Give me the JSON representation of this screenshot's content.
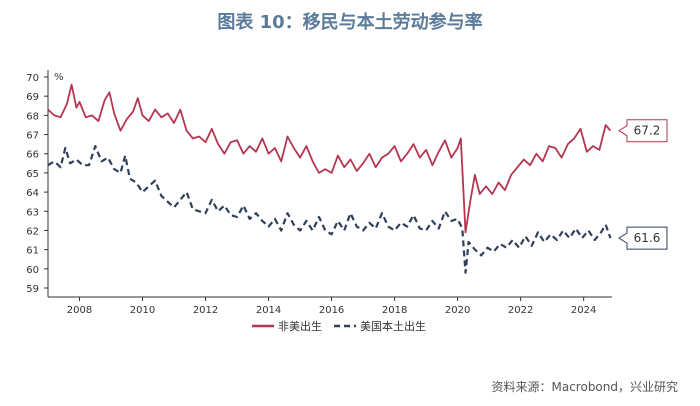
{
  "chart_data": {
    "type": "line",
    "title": "图表 10：移民与本土劳动参与率",
    "unit_label": "%",
    "xlim": [
      2007.0,
      2024.9
    ],
    "ylim": [
      59,
      70
    ],
    "yticks": [
      59,
      60,
      61,
      62,
      63,
      64,
      65,
      66,
      67,
      68,
      69,
      70
    ],
    "xticks": [
      2008,
      2010,
      2012,
      2014,
      2016,
      2018,
      2020,
      2022,
      2024
    ],
    "grid": false,
    "legend_position": "bottom-center",
    "series": [
      {
        "name": "非美出生",
        "color": "#b5364f",
        "style": "solid",
        "end_label": "67.2",
        "points": [
          [
            2007.0,
            68.3
          ],
          [
            2007.2,
            68.0
          ],
          [
            2007.4,
            67.9
          ],
          [
            2007.6,
            68.6
          ],
          [
            2007.75,
            69.6
          ],
          [
            2007.9,
            68.4
          ],
          [
            2008.0,
            68.7
          ],
          [
            2008.2,
            67.9
          ],
          [
            2008.4,
            68.0
          ],
          [
            2008.6,
            67.7
          ],
          [
            2008.8,
            68.8
          ],
          [
            2008.95,
            69.2
          ],
          [
            2009.1,
            68.1
          ],
          [
            2009.3,
            67.2
          ],
          [
            2009.5,
            67.8
          ],
          [
            2009.7,
            68.2
          ],
          [
            2009.85,
            68.9
          ],
          [
            2010.0,
            68.0
          ],
          [
            2010.2,
            67.7
          ],
          [
            2010.4,
            68.3
          ],
          [
            2010.6,
            67.9
          ],
          [
            2010.8,
            68.1
          ],
          [
            2011.0,
            67.6
          ],
          [
            2011.2,
            68.3
          ],
          [
            2011.4,
            67.2
          ],
          [
            2011.6,
            66.8
          ],
          [
            2011.8,
            66.9
          ],
          [
            2012.0,
            66.6
          ],
          [
            2012.2,
            67.3
          ],
          [
            2012.4,
            66.5
          ],
          [
            2012.6,
            66.0
          ],
          [
            2012.8,
            66.6
          ],
          [
            2013.0,
            66.7
          ],
          [
            2013.2,
            66.0
          ],
          [
            2013.4,
            66.4
          ],
          [
            2013.6,
            66.1
          ],
          [
            2013.8,
            66.8
          ],
          [
            2014.0,
            66.0
          ],
          [
            2014.2,
            66.3
          ],
          [
            2014.4,
            65.6
          ],
          [
            2014.6,
            66.9
          ],
          [
            2014.8,
            66.3
          ],
          [
            2015.0,
            65.8
          ],
          [
            2015.2,
            66.4
          ],
          [
            2015.4,
            65.6
          ],
          [
            2015.6,
            65.0
          ],
          [
            2015.8,
            65.2
          ],
          [
            2016.0,
            65.0
          ],
          [
            2016.2,
            65.9
          ],
          [
            2016.4,
            65.3
          ],
          [
            2016.6,
            65.7
          ],
          [
            2016.8,
            65.1
          ],
          [
            2017.0,
            65.5
          ],
          [
            2017.2,
            66.0
          ],
          [
            2017.4,
            65.3
          ],
          [
            2017.6,
            65.8
          ],
          [
            2017.8,
            66.0
          ],
          [
            2018.0,
            66.4
          ],
          [
            2018.2,
            65.6
          ],
          [
            2018.4,
            66.0
          ],
          [
            2018.6,
            66.5
          ],
          [
            2018.8,
            65.8
          ],
          [
            2019.0,
            66.2
          ],
          [
            2019.2,
            65.4
          ],
          [
            2019.4,
            66.1
          ],
          [
            2019.6,
            66.7
          ],
          [
            2019.8,
            65.8
          ],
          [
            2020.0,
            66.3
          ],
          [
            2020.1,
            66.8
          ],
          [
            2020.25,
            61.9
          ],
          [
            2020.4,
            63.5
          ],
          [
            2020.55,
            64.9
          ],
          [
            2020.7,
            63.9
          ],
          [
            2020.9,
            64.3
          ],
          [
            2021.1,
            63.9
          ],
          [
            2021.3,
            64.5
          ],
          [
            2021.5,
            64.1
          ],
          [
            2021.7,
            64.9
          ],
          [
            2021.9,
            65.3
          ],
          [
            2022.1,
            65.7
          ],
          [
            2022.3,
            65.4
          ],
          [
            2022.5,
            66.0
          ],
          [
            2022.7,
            65.6
          ],
          [
            2022.9,
            66.4
          ],
          [
            2023.1,
            66.3
          ],
          [
            2023.3,
            65.8
          ],
          [
            2023.5,
            66.5
          ],
          [
            2023.7,
            66.8
          ],
          [
            2023.9,
            67.3
          ],
          [
            2024.1,
            66.1
          ],
          [
            2024.3,
            66.4
          ],
          [
            2024.5,
            66.2
          ],
          [
            2024.7,
            67.5
          ],
          [
            2024.85,
            67.2
          ]
        ]
      },
      {
        "name": "美国本土出生",
        "color": "#2f3f5c",
        "style": "dashed",
        "end_label": "61.6",
        "points": [
          [
            2007.0,
            65.4
          ],
          [
            2007.2,
            65.6
          ],
          [
            2007.4,
            65.3
          ],
          [
            2007.55,
            66.3
          ],
          [
            2007.7,
            65.5
          ],
          [
            2007.9,
            65.7
          ],
          [
            2008.1,
            65.4
          ],
          [
            2008.3,
            65.4
          ],
          [
            2008.5,
            66.4
          ],
          [
            2008.7,
            65.6
          ],
          [
            2008.9,
            65.8
          ],
          [
            2009.1,
            65.2
          ],
          [
            2009.3,
            65.0
          ],
          [
            2009.45,
            65.9
          ],
          [
            2009.6,
            64.7
          ],
          [
            2009.8,
            64.5
          ],
          [
            2010.0,
            64.0
          ],
          [
            2010.2,
            64.3
          ],
          [
            2010.4,
            64.6
          ],
          [
            2010.6,
            63.8
          ],
          [
            2010.8,
            63.5
          ],
          [
            2011.0,
            63.2
          ],
          [
            2011.2,
            63.6
          ],
          [
            2011.4,
            64.0
          ],
          [
            2011.6,
            63.1
          ],
          [
            2011.8,
            63.0
          ],
          [
            2012.0,
            62.9
          ],
          [
            2012.2,
            63.6
          ],
          [
            2012.4,
            63.0
          ],
          [
            2012.6,
            63.3
          ],
          [
            2012.8,
            62.8
          ],
          [
            2013.0,
            62.7
          ],
          [
            2013.2,
            63.3
          ],
          [
            2013.4,
            62.6
          ],
          [
            2013.6,
            62.9
          ],
          [
            2013.8,
            62.5
          ],
          [
            2014.0,
            62.2
          ],
          [
            2014.2,
            62.6
          ],
          [
            2014.4,
            62.0
          ],
          [
            2014.6,
            62.9
          ],
          [
            2014.8,
            62.3
          ],
          [
            2015.0,
            62.0
          ],
          [
            2015.2,
            62.5
          ],
          [
            2015.4,
            62.0
          ],
          [
            2015.6,
            62.7
          ],
          [
            2015.8,
            62.0
          ],
          [
            2016.0,
            61.8
          ],
          [
            2016.2,
            62.5
          ],
          [
            2016.4,
            62.0
          ],
          [
            2016.6,
            62.9
          ],
          [
            2016.8,
            62.2
          ],
          [
            2017.0,
            62.0
          ],
          [
            2017.2,
            62.4
          ],
          [
            2017.4,
            62.1
          ],
          [
            2017.6,
            62.9
          ],
          [
            2017.8,
            62.2
          ],
          [
            2018.0,
            62.0
          ],
          [
            2018.2,
            62.4
          ],
          [
            2018.4,
            62.2
          ],
          [
            2018.6,
            62.8
          ],
          [
            2018.8,
            62.1
          ],
          [
            2019.0,
            62.0
          ],
          [
            2019.2,
            62.5
          ],
          [
            2019.4,
            62.1
          ],
          [
            2019.6,
            63.0
          ],
          [
            2019.8,
            62.5
          ],
          [
            2020.0,
            62.6
          ],
          [
            2020.15,
            62.1
          ],
          [
            2020.25,
            59.8
          ],
          [
            2020.35,
            61.4
          ],
          [
            2020.55,
            61.0
          ],
          [
            2020.75,
            60.7
          ],
          [
            2020.95,
            61.1
          ],
          [
            2021.15,
            60.9
          ],
          [
            2021.35,
            61.3
          ],
          [
            2021.55,
            61.1
          ],
          [
            2021.75,
            61.5
          ],
          [
            2021.95,
            61.1
          ],
          [
            2022.15,
            61.7
          ],
          [
            2022.35,
            61.2
          ],
          [
            2022.55,
            61.9
          ],
          [
            2022.75,
            61.4
          ],
          [
            2022.95,
            61.8
          ],
          [
            2023.15,
            61.5
          ],
          [
            2023.35,
            62.0
          ],
          [
            2023.55,
            61.6
          ],
          [
            2023.75,
            62.1
          ],
          [
            2023.95,
            61.6
          ],
          [
            2024.15,
            62.0
          ],
          [
            2024.35,
            61.5
          ],
          [
            2024.55,
            61.9
          ],
          [
            2024.7,
            62.3
          ],
          [
            2024.85,
            61.6
          ]
        ]
      }
    ]
  },
  "source_text": "资料来源：Macrobond，兴业研究"
}
